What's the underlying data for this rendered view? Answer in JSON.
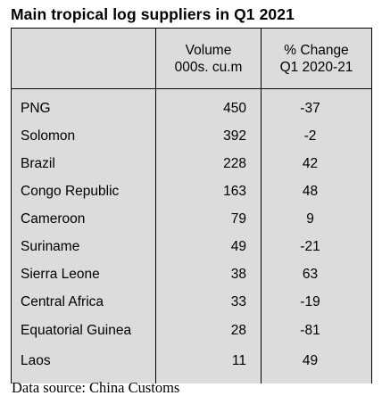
{
  "title": "Main tropical log suppliers in Q1 2021",
  "headers": {
    "country": "",
    "volume_line1": "Volume",
    "volume_line2": "000s. cu.m",
    "change_line1": "% Change",
    "change_line2": "Q1 2020-21"
  },
  "rows": [
    {
      "country": "PNG",
      "volume": "450",
      "change": "-37"
    },
    {
      "country": "Solomon",
      "volume": "392",
      "change": "-2"
    },
    {
      "country": "Brazil",
      "volume": "228",
      "change": "42"
    },
    {
      "country": "Congo Republic",
      "volume": "163",
      "change": "48"
    },
    {
      "country": "Cameroon",
      "volume": "79",
      "change": "9"
    },
    {
      "country": "Suriname",
      "volume": "49",
      "change": "-21"
    },
    {
      "country": "Sierra Leone",
      "volume": "38",
      "change": "63"
    },
    {
      "country": "Central Africa",
      "volume": "33",
      "change": "-19"
    },
    {
      "country": "Equatorial Guinea",
      "volume": "28",
      "change": "-81"
    },
    {
      "country": "Laos",
      "volume": "11",
      "change": "49"
    }
  ],
  "source": "Data source: China Customs",
  "colors": {
    "table_background": "#dcdcdc",
    "border": "#000000",
    "text": "#000000"
  }
}
